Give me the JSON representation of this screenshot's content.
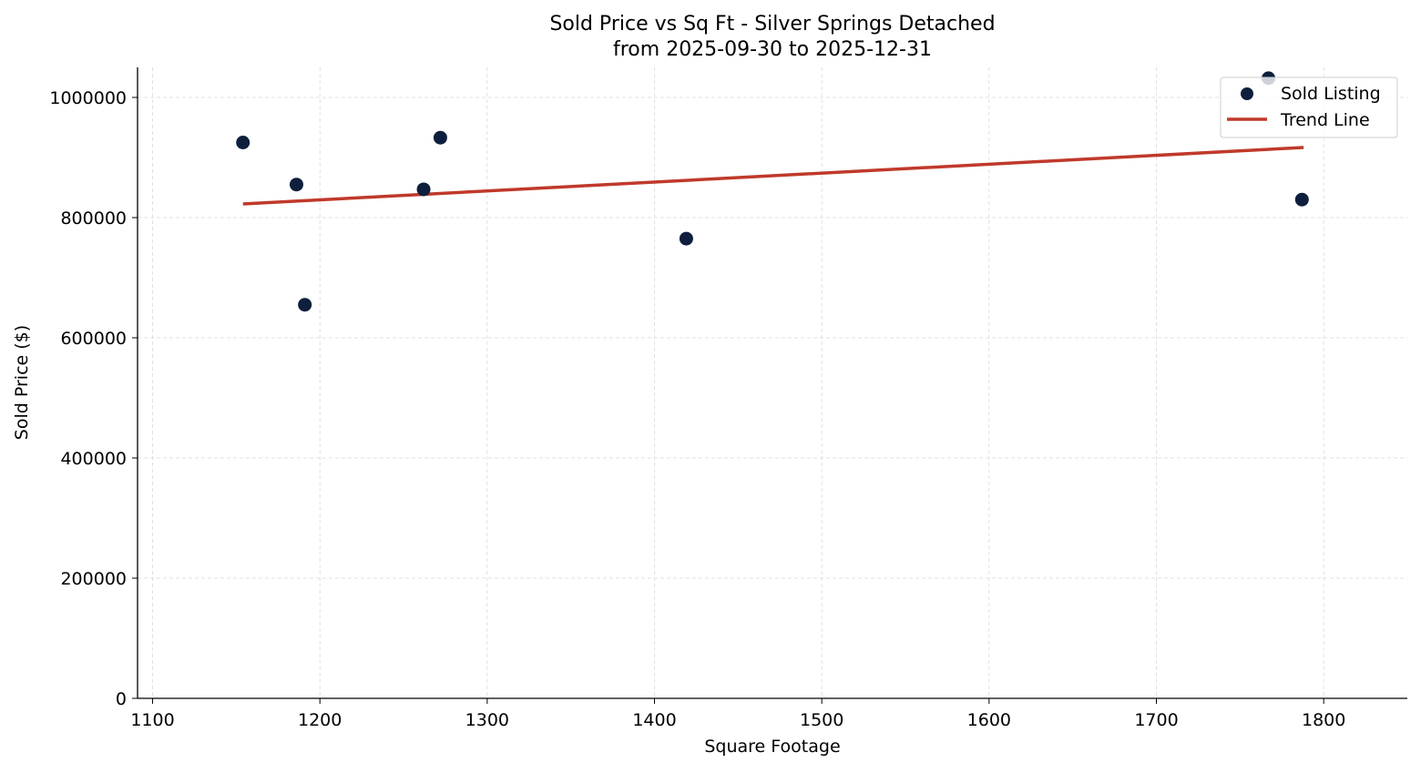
{
  "chart_data": {
    "type": "scatter",
    "title": "Sold Price vs Sq Ft - Silver Springs Detached",
    "subtitle": "from 2025-09-30 to 2025-12-31",
    "xlabel": "Square Footage",
    "ylabel": "Sold Price ($)",
    "xlim": [
      1091,
      1850
    ],
    "ylim": [
      0,
      1050000
    ],
    "xticks": [
      1100,
      1200,
      1300,
      1400,
      1500,
      1600,
      1700,
      1800
    ],
    "yticks": [
      0,
      200000,
      400000,
      600000,
      800000,
      1000000
    ],
    "grid": true,
    "legend_position": "top-right",
    "series": [
      {
        "name": "Sold Listing",
        "type": "scatter",
        "color": "#0d1f3c",
        "points": [
          {
            "x": 1154,
            "y": 925000
          },
          {
            "x": 1186,
            "y": 855000
          },
          {
            "x": 1191,
            "y": 655000
          },
          {
            "x": 1262,
            "y": 847000
          },
          {
            "x": 1272,
            "y": 933000
          },
          {
            "x": 1419,
            "y": 765000
          },
          {
            "x": 1767,
            "y": 1032000
          },
          {
            "x": 1787,
            "y": 830000
          }
        ]
      },
      {
        "name": "Trend Line",
        "type": "line",
        "color": "#c0392b",
        "points": [
          {
            "x": 1154,
            "y": 822700
          },
          {
            "x": 1788,
            "y": 916700
          }
        ]
      }
    ]
  }
}
